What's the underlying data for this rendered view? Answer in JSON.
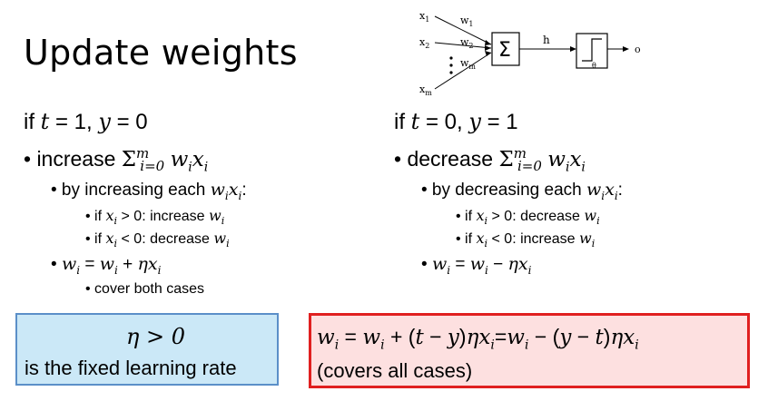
{
  "title": "Update weights",
  "diagram": {
    "inputs": [
      "x1",
      "x2",
      "xm"
    ],
    "weights": [
      "w1",
      "w2",
      "wm"
    ],
    "sum_symbol": "Σ",
    "hidden_label": "h",
    "threshold_label": "θ",
    "output_label": "o"
  },
  "left": {
    "condition": "if t = 1, y = 0",
    "main_bullet": "increase Σ_{i=0}^{m} w_i x_i",
    "sub_bullet": "by increasing each w_i x_i:",
    "subsub": [
      "if x_i > 0: increase w_i",
      "if x_i < 0: decrease w_i"
    ],
    "update_rule": "w_i = w_i + ηx_i",
    "update_note": "cover both cases"
  },
  "right": {
    "condition": "if t = 0, y = 1",
    "main_bullet": "decrease Σ_{i=0}^{m} w_i x_i",
    "sub_bullet": "by decreasing each w_i x_i:",
    "subsub": [
      "if x_i > 0: decrease w_i",
      "if x_i < 0: increase w_i"
    ],
    "update_rule": "w_i = w_i − ηx_i"
  },
  "blue_box": {
    "line1": "η > 0",
    "line2": "is the fixed learning rate"
  },
  "red_box": {
    "line1": "w_i = w_i + (t − y)ηx_i = w_i − (y − t)ηx_i",
    "line2": "(covers all cases)"
  },
  "colors": {
    "blue_fill": "#cbe8f7",
    "blue_border": "#5b8fc8",
    "red_fill": "#fde0e0",
    "red_border": "#e02020"
  }
}
